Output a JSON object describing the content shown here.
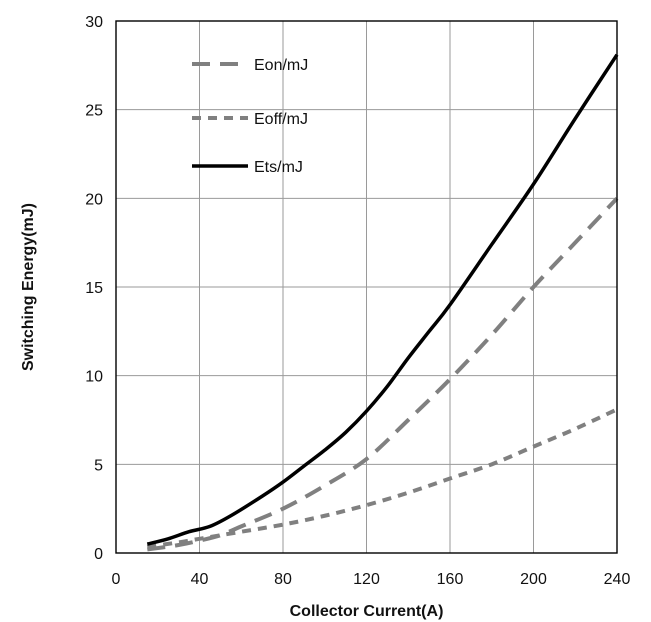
{
  "chart_data": {
    "type": "line",
    "title": "",
    "xlabel": "Collector Current(A)",
    "ylabel": "Switching Energy(mJ)",
    "xlim": [
      0,
      240
    ],
    "ylim": [
      0,
      30
    ],
    "xticks": [
      0,
      40,
      80,
      120,
      160,
      200,
      240
    ],
    "yticks": [
      0,
      5,
      10,
      15,
      20,
      25,
      30
    ],
    "xtick_labels": [
      "0",
      "40",
      "80",
      "120",
      "160",
      "200",
      "240"
    ],
    "ytick_labels": [
      "0",
      "5",
      "10",
      "15",
      "20",
      "25",
      "30"
    ],
    "grid": true,
    "legend_position": "top-left",
    "series": [
      {
        "name": "Eon/mJ",
        "style": "long-dash",
        "color": "#808080",
        "points": [
          [
            15,
            0.2
          ],
          [
            30,
            0.45
          ],
          [
            40,
            0.7
          ],
          [
            50,
            1.0
          ],
          [
            60,
            1.5
          ],
          [
            80,
            2.5
          ],
          [
            100,
            3.8
          ],
          [
            120,
            5.3
          ],
          [
            140,
            7.5
          ],
          [
            160,
            9.8
          ],
          [
            180,
            12.3
          ],
          [
            200,
            15.0
          ],
          [
            220,
            17.5
          ],
          [
            240,
            20.0
          ]
        ]
      },
      {
        "name": "Eoff/mJ",
        "style": "short-dash",
        "color": "#808080",
        "points": [
          [
            15,
            0.35
          ],
          [
            30,
            0.6
          ],
          [
            40,
            0.8
          ],
          [
            60,
            1.2
          ],
          [
            80,
            1.6
          ],
          [
            100,
            2.1
          ],
          [
            120,
            2.7
          ],
          [
            140,
            3.4
          ],
          [
            160,
            4.2
          ],
          [
            180,
            5.0
          ],
          [
            200,
            6.0
          ],
          [
            220,
            7.0
          ],
          [
            240,
            8.1
          ]
        ]
      },
      {
        "name": "Ets/mJ",
        "style": "solid",
        "color": "#000000",
        "points": [
          [
            15,
            0.5
          ],
          [
            25,
            0.8
          ],
          [
            35,
            1.2
          ],
          [
            45,
            1.5
          ],
          [
            55,
            2.1
          ],
          [
            70,
            3.2
          ],
          [
            80,
            4.0
          ],
          [
            90,
            4.9
          ],
          [
            100,
            5.8
          ],
          [
            110,
            6.8
          ],
          [
            120,
            8.0
          ],
          [
            130,
            9.4
          ],
          [
            140,
            11.0
          ],
          [
            150,
            12.5
          ],
          [
            160,
            14.0
          ],
          [
            180,
            17.4
          ],
          [
            200,
            20.8
          ],
          [
            220,
            24.5
          ],
          [
            240,
            28.1
          ]
        ]
      }
    ]
  }
}
